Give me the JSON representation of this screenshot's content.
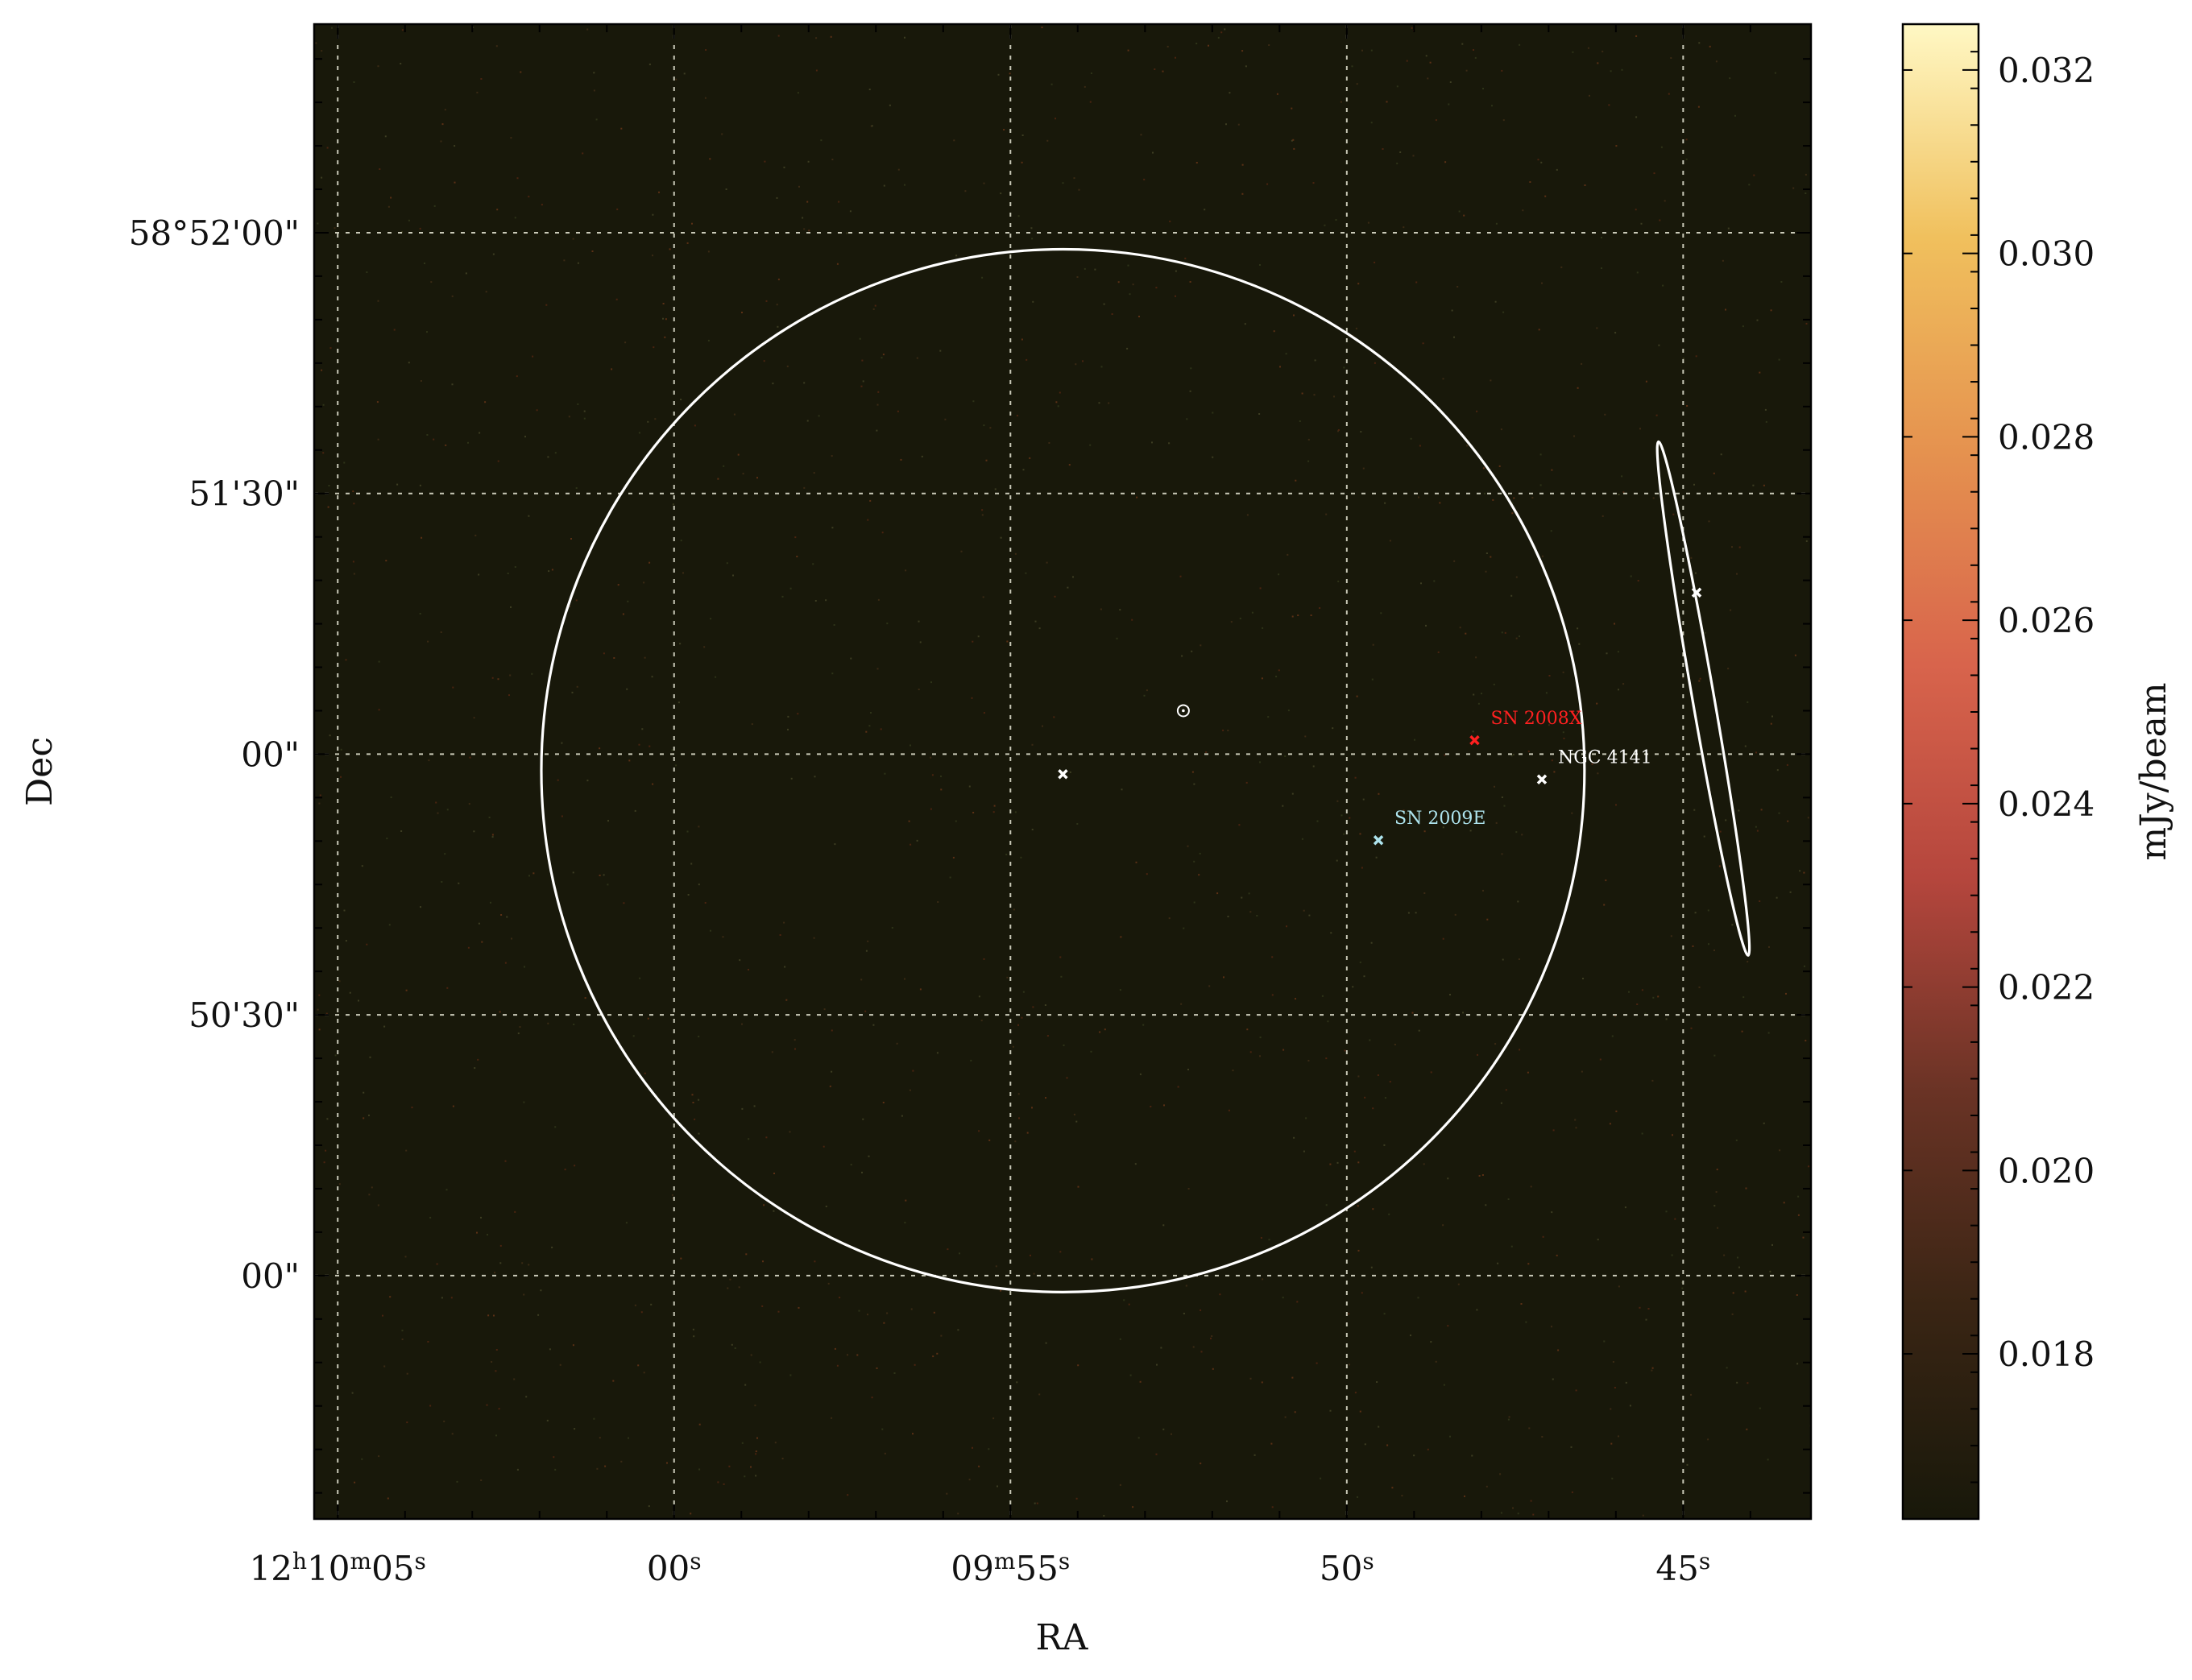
{
  "axes": {
    "xlabel": "RA",
    "ylabel": "Dec",
    "ra_ticks": [
      {
        "ra_sec": 5,
        "parts": [
          {
            "t": "12"
          },
          {
            "t": "h",
            "sup": true
          },
          {
            "t": "10"
          },
          {
            "t": "m",
            "sup": true
          },
          {
            "t": "05"
          },
          {
            "t": "s",
            "sup": true
          }
        ]
      },
      {
        "ra_sec": 0,
        "parts": [
          {
            "t": "00"
          },
          {
            "t": "s",
            "sup": true
          }
        ]
      },
      {
        "ra_sec": -5,
        "parts": [
          {
            "t": "09"
          },
          {
            "t": "m",
            "sup": true
          },
          {
            "t": "55"
          },
          {
            "t": "s",
            "sup": true
          }
        ]
      },
      {
        "ra_sec": -10,
        "parts": [
          {
            "t": "50"
          },
          {
            "t": "s",
            "sup": true
          }
        ]
      },
      {
        "ra_sec": -15,
        "parts": [
          {
            "t": "45"
          },
          {
            "t": "s",
            "sup": true
          }
        ]
      }
    ],
    "dec_ticks": [
      {
        "dec_arcsec": 120,
        "label": "58°52'00\""
      },
      {
        "dec_arcsec": 90,
        "label": "51'30\""
      },
      {
        "dec_arcsec": 60,
        "label": "00\""
      },
      {
        "dec_arcsec": 30,
        "label": "50'30\""
      },
      {
        "dec_arcsec": 0,
        "label": "00\""
      }
    ],
    "ra_range": [
      5.35,
      -16.9
    ],
    "dec_range": [
      -28,
      144
    ],
    "grid": true
  },
  "image": {
    "background_color": "#18180a",
    "noise_colors": [
      "#3a2a14",
      "#4a2410",
      "#2e3318",
      "#5a3015",
      "#3d3d22"
    ]
  },
  "colorbar": {
    "label": "mJy/beam",
    "range": [
      0.0162,
      0.0325
    ],
    "ticks": [
      0.018,
      0.02,
      0.022,
      0.024,
      0.026,
      0.028,
      0.03,
      0.032
    ],
    "tick_labels": [
      "0.018",
      "0.020",
      "0.022",
      "0.024",
      "0.026",
      "0.028",
      "0.030",
      "0.032"
    ],
    "minor_step": 0.0004,
    "stops": [
      "#18180a",
      "#3a2514",
      "#6a3325",
      "#b5463d",
      "#d8644c",
      "#e5924f",
      "#f0c05d",
      "#fff8c4"
    ]
  },
  "regions": [
    {
      "type": "circle",
      "ra_sec": -5.78,
      "dec_arcsec": 58.1,
      "radius_arcsec": 60,
      "color": "#ffffff"
    },
    {
      "type": "ellipse",
      "ra_sec": -15.3,
      "dec_arcsec": 66.4,
      "semi_major_arcsec": 30,
      "semi_minor_arcsec": 1.25,
      "pa_deg": 9.9,
      "color": "#ffffff"
    },
    {
      "type": "point-circle",
      "ra_sec": -7.57,
      "dec_arcsec": 65,
      "color": "#ffffff"
    }
  ],
  "markers": [
    {
      "ra_sec": -5.78,
      "dec_arcsec": 57.7,
      "color": "#ffffff",
      "label": ""
    },
    {
      "ra_sec": -15.2,
      "dec_arcsec": 78.6,
      "color": "#ffffff",
      "label": ""
    },
    {
      "ra_sec": -11.9,
      "dec_arcsec": 61.6,
      "color": "#ff2020",
      "label": "SN 2008X"
    },
    {
      "ra_sec": -12.9,
      "dec_arcsec": 57.1,
      "color": "#ffffff",
      "label": "NGC 4141"
    },
    {
      "ra_sec": -10.47,
      "dec_arcsec": 50.1,
      "color": "#aee4ee",
      "label": "SN 2009E"
    }
  ]
}
